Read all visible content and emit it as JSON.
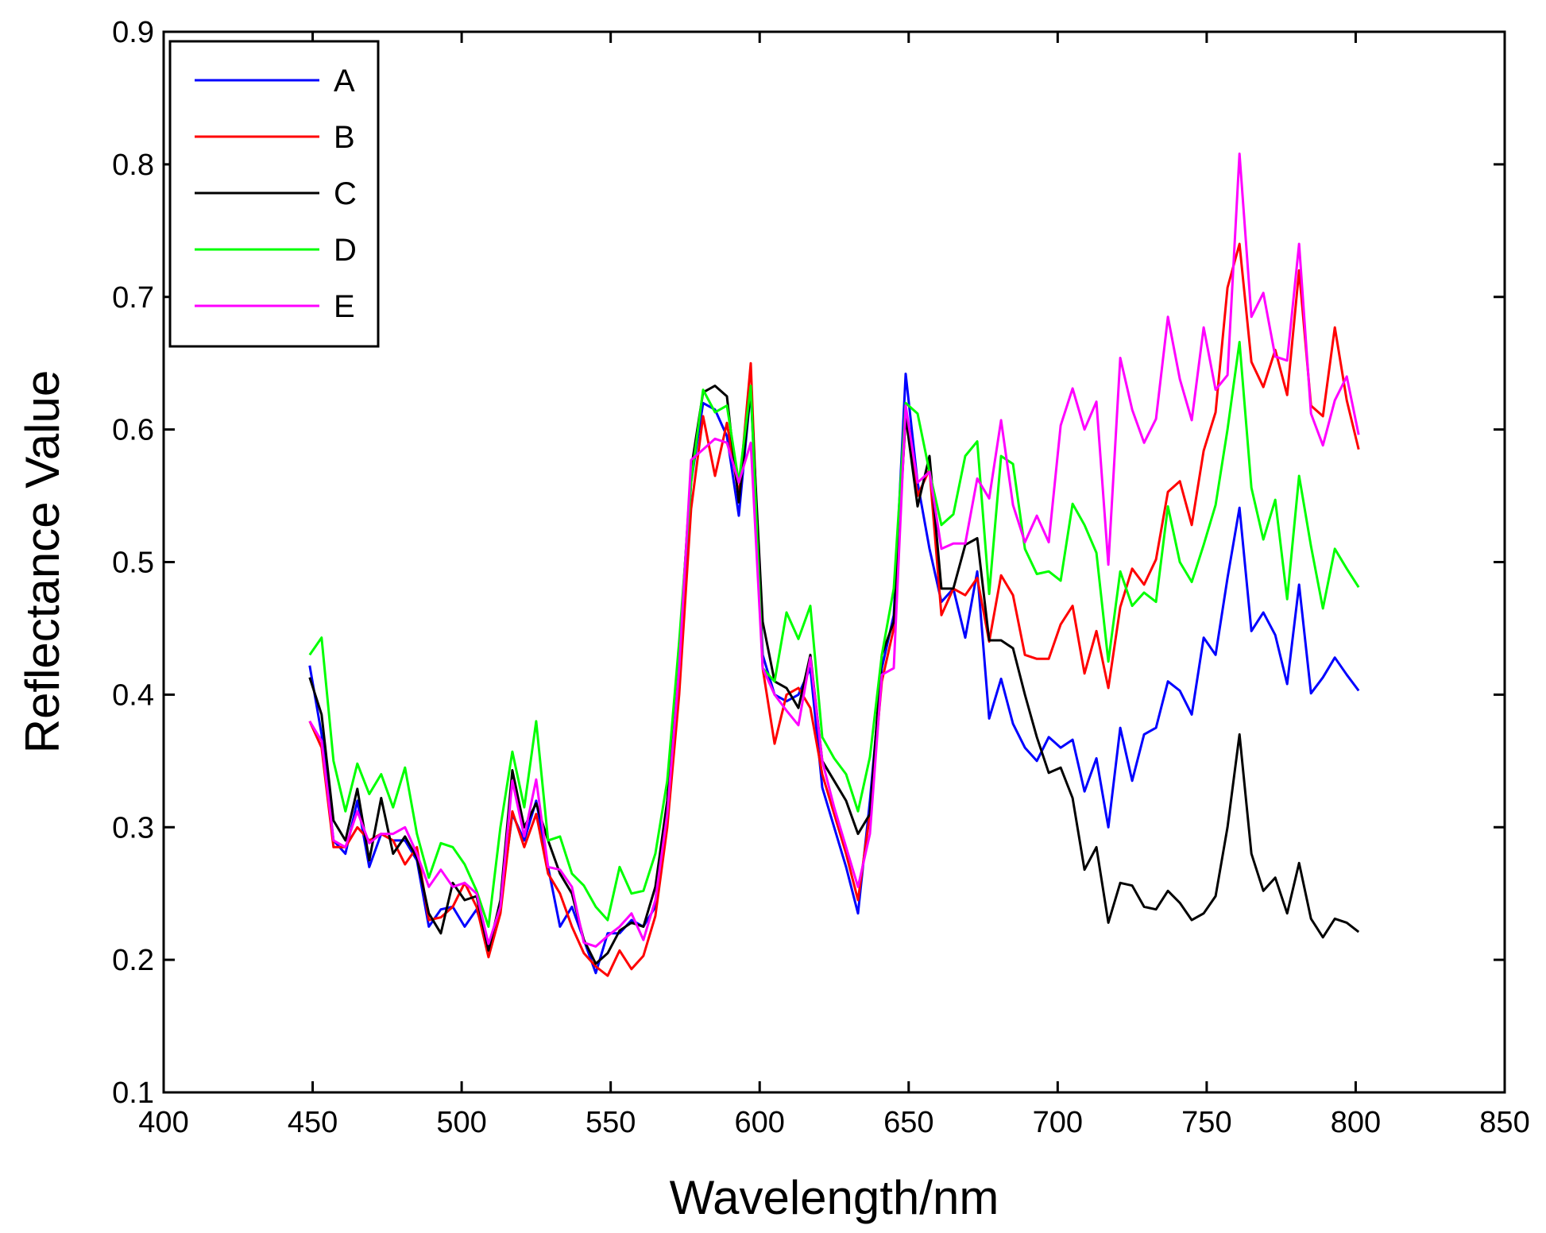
{
  "chart_data": {
    "type": "line",
    "xlabel": "Wavelength/nm",
    "ylabel": "Reflectance Value",
    "xlim": [
      400,
      850
    ],
    "ylim": [
      0.1,
      0.9
    ],
    "x_ticks": [
      "400",
      "450",
      "500",
      "550",
      "600",
      "650",
      "700",
      "750",
      "800",
      "850"
    ],
    "y_ticks": [
      "0.1",
      "0.2",
      "0.3",
      "0.4",
      "0.5",
      "0.6",
      "0.7",
      "0.8",
      "0.9"
    ],
    "grid": false,
    "legend_position": "top-left",
    "x": [
      449,
      453,
      457,
      461,
      465,
      469,
      473,
      477,
      481,
      485,
      489,
      493,
      497,
      501,
      505,
      509,
      513,
      517,
      521,
      525,
      529,
      533,
      537,
      541,
      545,
      549,
      553,
      557,
      561,
      565,
      569,
      573,
      577,
      581,
      585,
      589,
      593,
      597,
      601,
      605,
      609,
      613,
      617,
      621,
      625,
      629,
      633,
      637,
      641,
      645,
      649,
      653,
      657,
      661,
      665,
      669,
      673,
      677,
      681,
      685,
      689,
      693,
      697,
      701,
      705,
      709,
      713,
      717,
      721,
      725,
      729,
      733,
      737,
      741,
      745,
      749,
      753,
      757,
      761,
      765,
      769,
      773,
      777,
      781,
      785,
      789,
      793,
      797,
      801
    ],
    "series": [
      {
        "name": "A",
        "color": "#0000ff",
        "values": [
          0.422,
          0.37,
          0.29,
          0.28,
          0.32,
          0.27,
          0.295,
          0.29,
          0.29,
          0.275,
          0.225,
          0.238,
          0.24,
          0.225,
          0.238,
          0.21,
          0.24,
          0.31,
          0.29,
          0.32,
          0.27,
          0.225,
          0.24,
          0.215,
          0.19,
          0.22,
          0.22,
          0.23,
          0.225,
          0.24,
          0.31,
          0.41,
          0.56,
          0.62,
          0.615,
          0.595,
          0.535,
          0.63,
          0.43,
          0.4,
          0.395,
          0.4,
          0.42,
          0.33,
          0.3,
          0.27,
          0.235,
          0.32,
          0.42,
          0.46,
          0.642,
          0.56,
          0.51,
          0.47,
          0.48,
          0.443,
          0.493,
          0.382,
          0.412,
          0.378,
          0.36,
          0.35,
          0.368,
          0.36,
          0.366,
          0.327,
          0.352,
          0.3,
          0.375,
          0.335,
          0.37,
          0.375,
          0.41,
          0.403,
          0.385,
          0.443,
          0.43,
          0.488,
          0.541,
          0.448,
          0.462,
          0.445,
          0.408,
          0.483,
          0.401,
          0.413,
          0.428,
          0.415,
          0.403
        ]
      },
      {
        "name": "B",
        "color": "#ff0000",
        "values": [
          0.38,
          0.36,
          0.285,
          0.285,
          0.3,
          0.29,
          0.295,
          0.29,
          0.272,
          0.285,
          0.23,
          0.232,
          0.24,
          0.258,
          0.24,
          0.202,
          0.235,
          0.312,
          0.285,
          0.31,
          0.265,
          0.25,
          0.225,
          0.205,
          0.195,
          0.188,
          0.207,
          0.193,
          0.203,
          0.233,
          0.3,
          0.4,
          0.54,
          0.61,
          0.565,
          0.605,
          0.55,
          0.65,
          0.42,
          0.363,
          0.4,
          0.405,
          0.39,
          0.34,
          0.31,
          0.28,
          0.245,
          0.31,
          0.41,
          0.45,
          0.61,
          0.55,
          0.57,
          0.46,
          0.48,
          0.475,
          0.488,
          0.44,
          0.49,
          0.475,
          0.43,
          0.427,
          0.427,
          0.453,
          0.467,
          0.416,
          0.448,
          0.405,
          0.466,
          0.495,
          0.483,
          0.502,
          0.553,
          0.561,
          0.528,
          0.584,
          0.613,
          0.707,
          0.74,
          0.651,
          0.632,
          0.66,
          0.626,
          0.72,
          0.618,
          0.61,
          0.677,
          0.622,
          0.585
        ]
      },
      {
        "name": "C",
        "color": "#000000",
        "values": [
          0.413,
          0.385,
          0.305,
          0.29,
          0.329,
          0.275,
          0.322,
          0.28,
          0.293,
          0.277,
          0.235,
          0.22,
          0.258,
          0.245,
          0.248,
          0.207,
          0.245,
          0.343,
          0.3,
          0.318,
          0.29,
          0.265,
          0.25,
          0.215,
          0.197,
          0.205,
          0.222,
          0.228,
          0.225,
          0.255,
          0.32,
          0.43,
          0.57,
          0.628,
          0.633,
          0.625,
          0.545,
          0.63,
          0.455,
          0.41,
          0.405,
          0.39,
          0.43,
          0.35,
          0.335,
          0.32,
          0.295,
          0.31,
          0.43,
          0.455,
          0.61,
          0.542,
          0.58,
          0.48,
          0.48,
          0.513,
          0.518,
          0.441,
          0.441,
          0.435,
          0.4,
          0.368,
          0.341,
          0.345,
          0.322,
          0.268,
          0.285,
          0.228,
          0.258,
          0.256,
          0.24,
          0.238,
          0.252,
          0.243,
          0.23,
          0.235,
          0.248,
          0.3,
          0.37,
          0.28,
          0.252,
          0.262,
          0.235,
          0.273,
          0.231,
          0.217,
          0.231,
          0.228,
          0.221
        ]
      },
      {
        "name": "D",
        "color": "#00ff00",
        "values": [
          0.43,
          0.443,
          0.35,
          0.312,
          0.348,
          0.325,
          0.34,
          0.315,
          0.345,
          0.295,
          0.262,
          0.288,
          0.285,
          0.272,
          0.252,
          0.225,
          0.3,
          0.357,
          0.315,
          0.38,
          0.29,
          0.293,
          0.265,
          0.256,
          0.24,
          0.23,
          0.27,
          0.25,
          0.252,
          0.28,
          0.335,
          0.44,
          0.56,
          0.63,
          0.613,
          0.618,
          0.56,
          0.633,
          0.42,
          0.41,
          0.462,
          0.442,
          0.467,
          0.368,
          0.352,
          0.34,
          0.312,
          0.353,
          0.43,
          0.48,
          0.62,
          0.612,
          0.568,
          0.528,
          0.536,
          0.58,
          0.591,
          0.476,
          0.58,
          0.574,
          0.51,
          0.491,
          0.493,
          0.486,
          0.544,
          0.528,
          0.507,
          0.425,
          0.493,
          0.467,
          0.477,
          0.47,
          0.542,
          0.5,
          0.485,
          0.513,
          0.543,
          0.6,
          0.666,
          0.556,
          0.517,
          0.547,
          0.472,
          0.565,
          0.512,
          0.465,
          0.51,
          0.495,
          0.481
        ]
      },
      {
        "name": "E",
        "color": "#ff00ff",
        "values": [
          0.38,
          0.365,
          0.29,
          0.285,
          0.312,
          0.288,
          0.295,
          0.295,
          0.3,
          0.28,
          0.255,
          0.268,
          0.255,
          0.258,
          0.25,
          0.212,
          0.24,
          0.335,
          0.293,
          0.336,
          0.27,
          0.268,
          0.255,
          0.213,
          0.21,
          0.218,
          0.225,
          0.235,
          0.215,
          0.245,
          0.31,
          0.42,
          0.577,
          0.585,
          0.593,
          0.59,
          0.56,
          0.59,
          0.42,
          0.4,
          0.388,
          0.377,
          0.428,
          0.35,
          0.315,
          0.285,
          0.255,
          0.295,
          0.415,
          0.42,
          0.618,
          0.56,
          0.568,
          0.51,
          0.514,
          0.514,
          0.563,
          0.548,
          0.607,
          0.543,
          0.515,
          0.535,
          0.515,
          0.603,
          0.631,
          0.6,
          0.621,
          0.498,
          0.654,
          0.615,
          0.59,
          0.608,
          0.685,
          0.638,
          0.607,
          0.677,
          0.63,
          0.641,
          0.808,
          0.685,
          0.703,
          0.655,
          0.652,
          0.74,
          0.612,
          0.588,
          0.622,
          0.64,
          0.596
        ]
      }
    ]
  }
}
